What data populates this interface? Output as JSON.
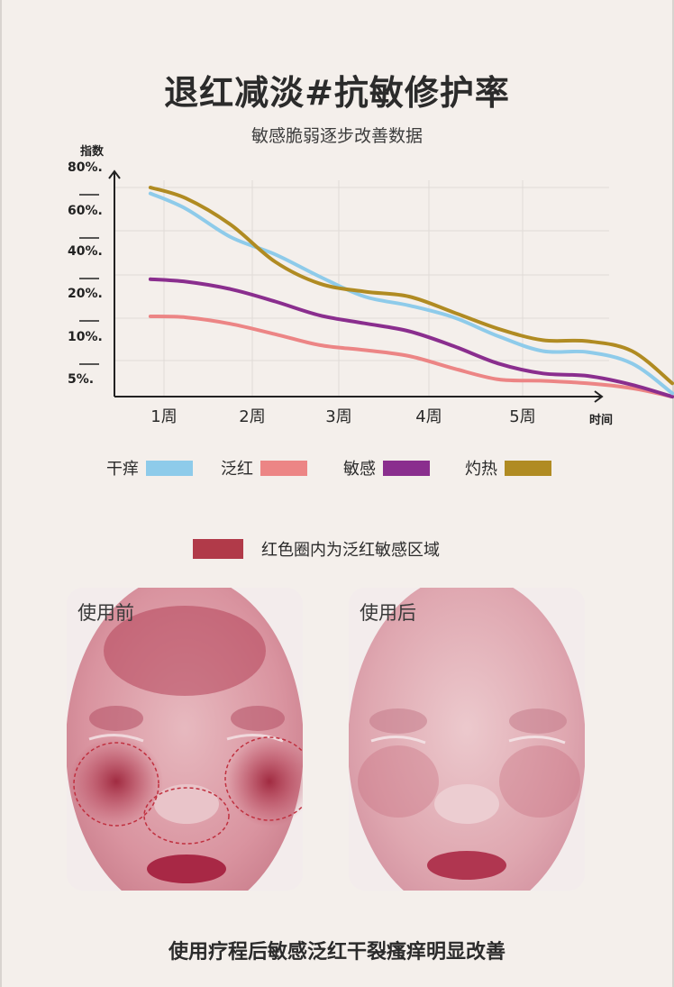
{
  "header": {
    "title": "退红减淡#抗敏修护率",
    "subtitle": "敏感脆弱逐步改善数据"
  },
  "chart_data": {
    "type": "line",
    "ylabel": "指数",
    "xlabel": "时间",
    "y_ticks": [
      "80%.",
      "60%.",
      "40%.",
      "20%.",
      "10%.",
      "5%."
    ],
    "categories": [
      "1周",
      "2周",
      "3周",
      "4周",
      "5周"
    ],
    "grid": true,
    "y_scale": "categorical-levels",
    "series": [
      {
        "name": "干痒",
        "color": "#8ecbea",
        "x": [
          0.1,
          0.5,
          1,
          1.5,
          2,
          2.5,
          3,
          3.5,
          4,
          4.5,
          5,
          5.5,
          5.95
        ],
        "y": [
          0.12,
          0.43,
          1.0,
          1.35,
          1.8,
          2.2,
          2.38,
          2.62,
          3.0,
          3.3,
          3.32,
          3.55,
          4.15
        ]
      },
      {
        "name": "泛红",
        "color": "#ec8585",
        "x": [
          0.1,
          0.5,
          1,
          1.5,
          2,
          2.5,
          3,
          3.5,
          4,
          4.5,
          5,
          5.5,
          5.95
        ],
        "y": [
          2.6,
          2.62,
          2.75,
          2.96,
          3.18,
          3.28,
          3.4,
          3.65,
          3.87,
          3.9,
          3.95,
          4.05,
          4.22
        ]
      },
      {
        "name": "敏感",
        "color": "#8a2e8e",
        "x": [
          0.1,
          0.5,
          1,
          1.5,
          2,
          2.5,
          3,
          3.5,
          4,
          4.5,
          5,
          5.5,
          5.95
        ],
        "y": [
          1.85,
          1.9,
          2.05,
          2.3,
          2.58,
          2.74,
          2.9,
          3.2,
          3.55,
          3.75,
          3.8,
          3.98,
          4.22
        ]
      },
      {
        "name": "灼热",
        "color": "#b08b22",
        "x": [
          0.1,
          0.5,
          1,
          1.5,
          2,
          2.5,
          3,
          3.5,
          4,
          4.5,
          5,
          5.5,
          5.95
        ],
        "y": [
          0.0,
          0.22,
          0.75,
          1.5,
          1.94,
          2.1,
          2.2,
          2.52,
          2.85,
          3.08,
          3.1,
          3.3,
          3.95
        ]
      }
    ]
  },
  "legend": {
    "items": [
      {
        "label": "干痒",
        "color": "#8ecbea"
      },
      {
        "label": "泛红",
        "color": "#ec8585"
      },
      {
        "label": "敏感",
        "color": "#8a2e8e"
      },
      {
        "label": "灼热",
        "color": "#b08b22"
      }
    ]
  },
  "key": {
    "label": "红色圈内为泛红敏感区域",
    "color": "#b13a49"
  },
  "photos": {
    "before_label": "使用前",
    "after_label": "使用后"
  },
  "caption": "使用疗程后敏感泛红干裂瘙痒明显改善"
}
